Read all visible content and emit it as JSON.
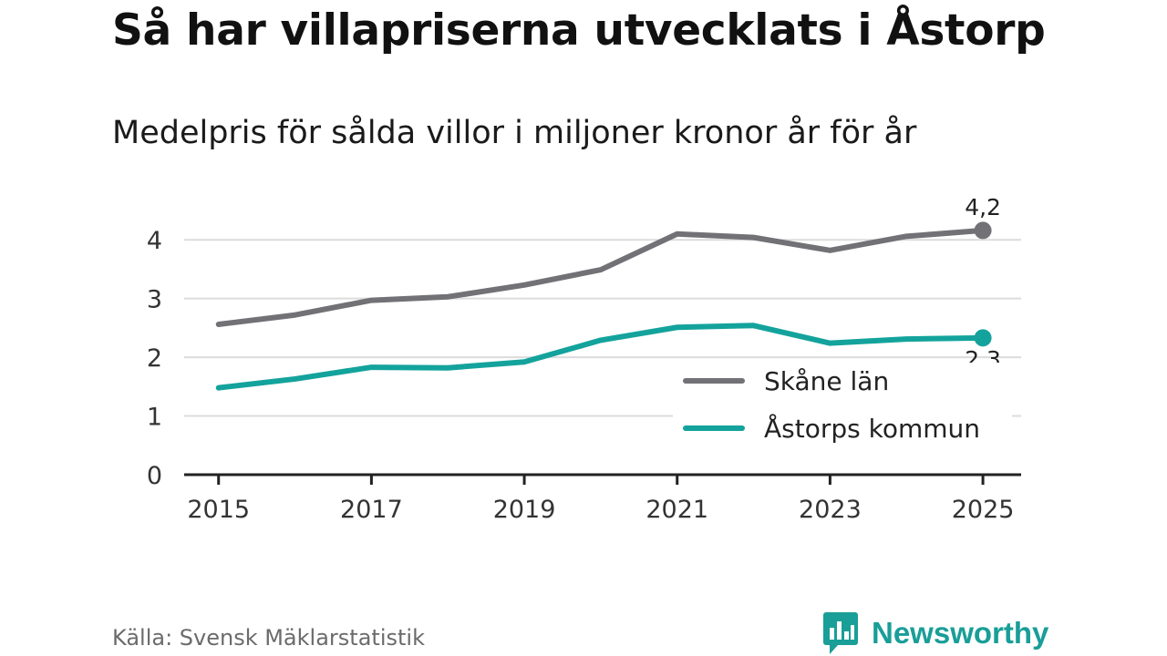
{
  "header": {
    "title": "Så har villapriserna utvecklats i Åstorp",
    "subtitle": "Medelpris för sålda villor i miljoner kronor år för år"
  },
  "footer": {
    "source": "Källa: Svensk Mäklarstatistik",
    "brand": "Newsworthy"
  },
  "colors": {
    "skane": "#727176",
    "astorp": "#13a39c",
    "grid": "#dcdcdc",
    "axis": "#222222"
  },
  "chart_data": {
    "type": "line",
    "title": "Så har villapriserna utvecklats i Åstorp",
    "subtitle": "Medelpris för sålda villor i miljoner kronor år för år",
    "xlabel": "",
    "ylabel": "",
    "x": [
      2015,
      2016,
      2017,
      2018,
      2019,
      2020,
      2021,
      2022,
      2023,
      2024,
      2025
    ],
    "x_ticks": [
      2015,
      2017,
      2019,
      2021,
      2023,
      2025
    ],
    "y_ticks": [
      0,
      1,
      2,
      3,
      4
    ],
    "xlim": [
      2014.55,
      2025.5
    ],
    "ylim": [
      0,
      4.5
    ],
    "grid": true,
    "legend_position": "bottom-right",
    "series": [
      {
        "name": "Skåne län",
        "color": "#727176",
        "values": [
          2.56,
          2.72,
          2.97,
          3.03,
          3.23,
          3.49,
          4.1,
          4.04,
          3.82,
          4.06,
          4.16
        ],
        "end_label": "4,2"
      },
      {
        "name": "Åstorps kommun",
        "color": "#13a39c",
        "values": [
          1.48,
          1.63,
          1.83,
          1.82,
          1.92,
          2.29,
          2.51,
          2.54,
          2.24,
          2.31,
          2.33
        ],
        "end_label": "2,3"
      }
    ]
  }
}
